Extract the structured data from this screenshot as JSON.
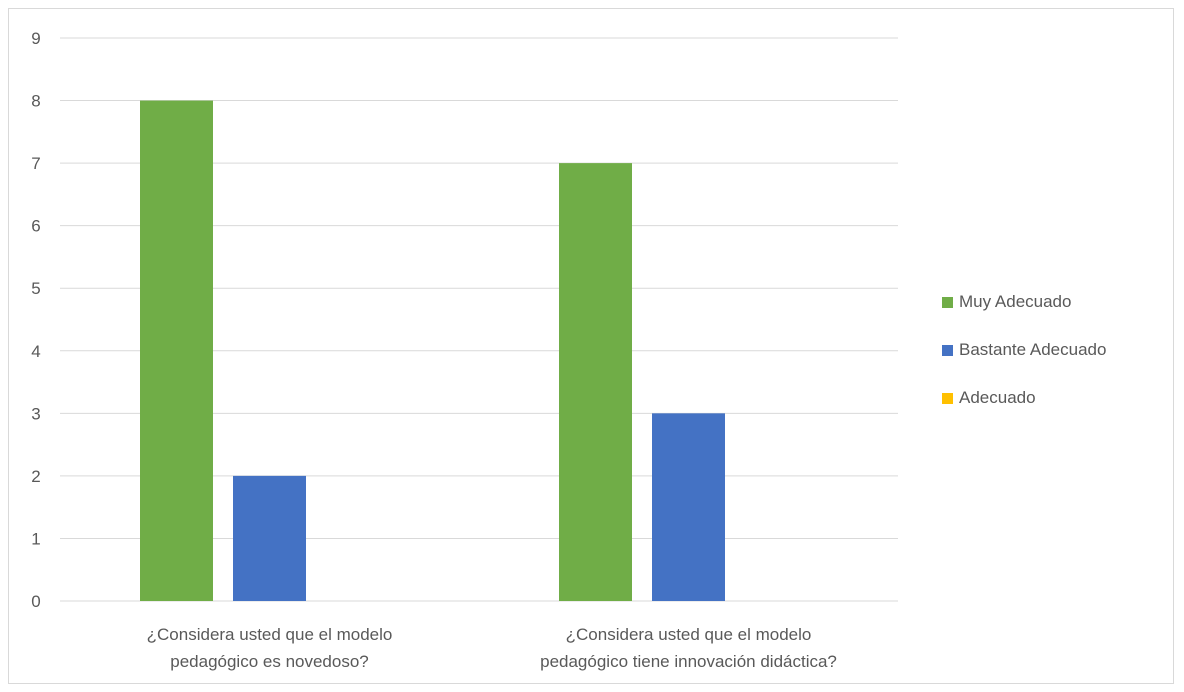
{
  "chart_data": {
    "type": "bar",
    "categories": [
      [
        "¿Considera usted que el modelo",
        "pedagógico es novedoso?"
      ],
      [
        "¿Considera usted que el modelo",
        "pedagógico tiene innovación didáctica?"
      ]
    ],
    "series": [
      {
        "name": "Muy Adecuado",
        "values": [
          8,
          7
        ],
        "color": "#70ad47"
      },
      {
        "name": "Bastante Adecuado",
        "values": [
          2,
          3
        ],
        "color": "#4472c4"
      },
      {
        "name": "Adecuado",
        "values": [
          0,
          0
        ],
        "color": "#ffc000"
      }
    ],
    "yticks": [
      "0",
      "1",
      "2",
      "3",
      "4",
      "5",
      "6",
      "7",
      "8",
      "9"
    ],
    "ylim": [
      0,
      9
    ],
    "grid": true,
    "legend_position": "right",
    "title": "",
    "xlabel": "",
    "ylabel": ""
  }
}
